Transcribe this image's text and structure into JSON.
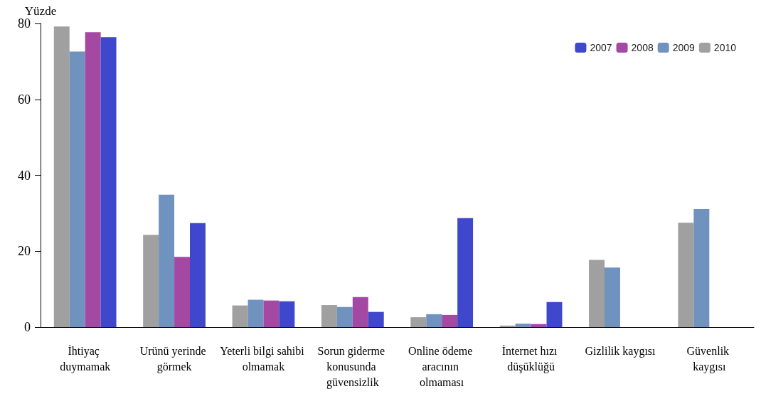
{
  "chart_data": {
    "type": "bar",
    "ylabel": "Yüzde",
    "categories": [
      "İhtiyaç duymamak",
      "Urünü yerinde görmek",
      "Yeterli bilgi sahibi olmamak",
      "Sorun giderme konusunda güvensizlik",
      "Online ödeme aracının olmaması",
      "İnternet hızı düşüklüğü",
      "Gizlilik kaygısı",
      "Güvenlik kaygısı"
    ],
    "series": [
      {
        "name": "2007",
        "color": "#3f48cc",
        "values": [
          76.4,
          27.4,
          6.8,
          4.0,
          28.7,
          6.6,
          null,
          null
        ]
      },
      {
        "name": "2008",
        "color": "#a349a4",
        "values": [
          77.7,
          18.5,
          7.0,
          7.9,
          3.2,
          0.8,
          null,
          null
        ]
      },
      {
        "name": "2009",
        "color": "#7092be",
        "values": [
          72.6,
          34.9,
          7.2,
          5.3,
          3.4,
          0.9,
          15.7,
          31.1
        ]
      },
      {
        "name": "2010",
        "color": "#a0a0a0",
        "values": [
          79.2,
          24.3,
          5.7,
          5.8,
          2.6,
          0.4,
          17.7,
          27.5
        ]
      }
    ],
    "ylim": [
      0,
      80
    ],
    "yticks": [
      0,
      20,
      40,
      60,
      80
    ],
    "grid": false,
    "legend": "top right"
  }
}
